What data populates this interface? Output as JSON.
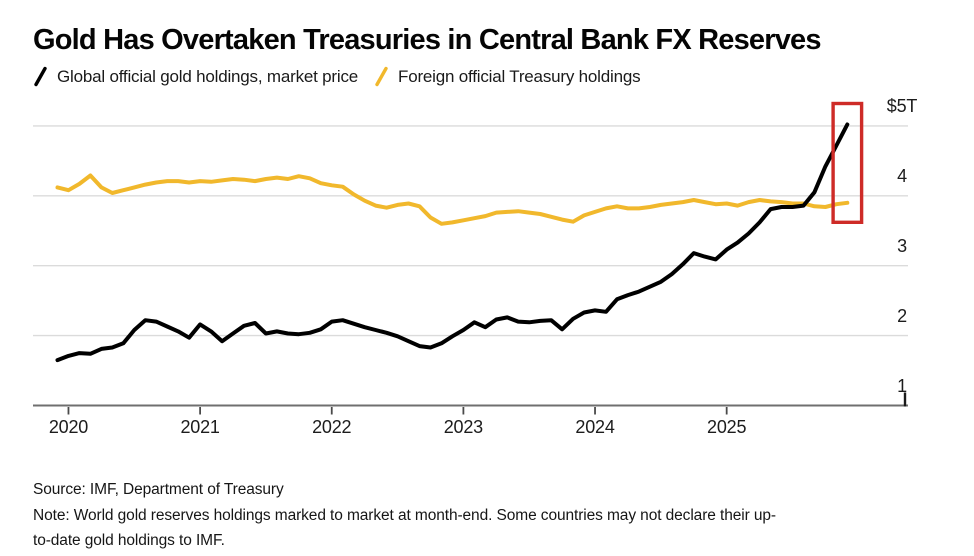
{
  "title": "Gold Has Overtaken Treasuries in Central Bank FX Reserves",
  "legend": {
    "items": [
      {
        "label": "Global official gold holdings, market price",
        "color": "#000000"
      },
      {
        "label": "Foreign official Treasury holdings",
        "color": "#F1B82C"
      }
    ]
  },
  "footer": {
    "source": "Source: IMF, Department of Treasury",
    "note_line1": "Note: World gold reserves holdings marked to market at month-end. Some countries may not declare their up-",
    "note_line2": "to-date gold holdings to IMF."
  },
  "chart_data": {
    "type": "line",
    "title": "Gold Has Overtaken Treasuries in Central Bank FX Reserves",
    "unit": "USD trillions",
    "ylim": [
      1,
      5.35
    ],
    "grid": "horizontal",
    "legend_position": "top",
    "y_ticks": [
      "$5T",
      "4",
      "3",
      "2",
      "1"
    ],
    "y_tick_values": [
      5,
      4,
      3,
      2,
      1
    ],
    "x_ticks": [
      "2020",
      "2021",
      "2022",
      "2023",
      "2024",
      "2025"
    ],
    "x": [
      "2019-12",
      "2020-01",
      "2020-02",
      "2020-03",
      "2020-04",
      "2020-05",
      "2020-06",
      "2020-07",
      "2020-08",
      "2020-09",
      "2020-10",
      "2020-11",
      "2020-12",
      "2021-01",
      "2021-02",
      "2021-03",
      "2021-04",
      "2021-05",
      "2021-06",
      "2021-07",
      "2021-08",
      "2021-09",
      "2021-10",
      "2021-11",
      "2021-12",
      "2022-01",
      "2022-02",
      "2022-03",
      "2022-04",
      "2022-05",
      "2022-06",
      "2022-07",
      "2022-08",
      "2022-09",
      "2022-10",
      "2022-11",
      "2022-12",
      "2023-01",
      "2023-02",
      "2023-03",
      "2023-04",
      "2023-05",
      "2023-06",
      "2023-07",
      "2023-08",
      "2023-09",
      "2023-10",
      "2023-11",
      "2023-12",
      "2024-01",
      "2024-02",
      "2024-03",
      "2024-04",
      "2024-05",
      "2024-06",
      "2024-07",
      "2024-08",
      "2024-09",
      "2024-10",
      "2024-11",
      "2024-12",
      "2025-01",
      "2025-02",
      "2025-03",
      "2025-04",
      "2025-05",
      "2025-06",
      "2025-07",
      "2025-08",
      "2025-09",
      "2025-10",
      "2025-11",
      "2025-12"
    ],
    "series": [
      {
        "name": "Global official gold holdings, market price",
        "color": "#000000",
        "values": [
          1.65,
          1.71,
          1.75,
          1.74,
          1.81,
          1.83,
          1.89,
          2.08,
          2.22,
          2.2,
          2.13,
          2.06,
          1.97,
          2.16,
          2.06,
          1.92,
          2.03,
          2.14,
          2.18,
          2.03,
          2.06,
          2.03,
          2.02,
          2.04,
          2.09,
          2.2,
          2.22,
          2.17,
          2.12,
          2.08,
          2.04,
          1.99,
          1.92,
          1.85,
          1.83,
          1.89,
          1.99,
          2.08,
          2.19,
          2.12,
          2.23,
          2.26,
          2.2,
          2.19,
          2.21,
          2.22,
          2.09,
          2.24,
          2.33,
          2.36,
          2.34,
          2.52,
          2.58,
          2.63,
          2.7,
          2.77,
          2.88,
          3.02,
          3.18,
          3.13,
          3.09,
          3.23,
          3.33,
          3.46,
          3.62,
          3.81,
          3.84,
          3.84,
          3.86,
          4.05,
          4.42,
          4.72,
          5.02
        ]
      },
      {
        "name": "Foreign official Treasury holdings",
        "color": "#F1B82C",
        "values": [
          4.12,
          4.08,
          4.17,
          4.29,
          4.12,
          4.04,
          4.08,
          4.12,
          4.16,
          4.19,
          4.21,
          4.21,
          4.19,
          4.21,
          4.2,
          4.22,
          4.24,
          4.23,
          4.21,
          4.24,
          4.26,
          4.24,
          4.28,
          4.25,
          4.18,
          4.15,
          4.13,
          4.02,
          3.93,
          3.86,
          3.83,
          3.87,
          3.89,
          3.85,
          3.69,
          3.6,
          3.62,
          3.65,
          3.68,
          3.71,
          3.76,
          3.77,
          3.78,
          3.76,
          3.74,
          3.7,
          3.66,
          3.63,
          3.72,
          3.77,
          3.82,
          3.85,
          3.82,
          3.82,
          3.84,
          3.87,
          3.89,
          3.91,
          3.94,
          3.91,
          3.88,
          3.89,
          3.86,
          3.91,
          3.94,
          3.92,
          3.91,
          3.89,
          3.89,
          3.85,
          3.84,
          3.88,
          3.9
        ]
      }
    ],
    "highlight_box": {
      "from_month_index": 70.7,
      "to_month_index": 73.3,
      "from_value": 3.62,
      "to_value": 5.32,
      "color": "#CE2B27"
    }
  }
}
